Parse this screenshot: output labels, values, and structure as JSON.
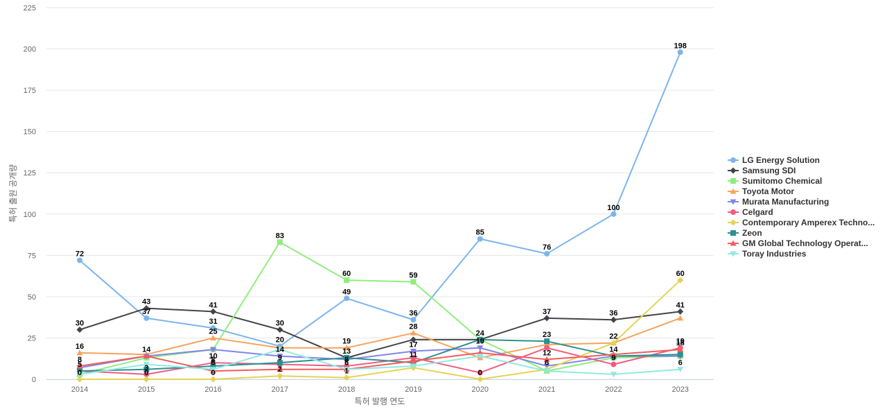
{
  "chart_data": {
    "type": "line",
    "title": "",
    "xlabel": "특허 발행 연도",
    "ylabel": "특허 출원 공개량",
    "x": [
      "2014",
      "2015",
      "2016",
      "2017",
      "2018",
      "2019",
      "2020",
      "2021",
      "2022",
      "2023"
    ],
    "ylim": [
      0,
      225
    ],
    "yticks": [
      0,
      25,
      50,
      75,
      100,
      125,
      150,
      175,
      200,
      225
    ],
    "grid": "horizontal",
    "legend_position": "right",
    "series": [
      {
        "name": "LG Energy Solution",
        "color": "#7cb5ec",
        "marker": "circle",
        "values": [
          72,
          37,
          31,
          20,
          49,
          36,
          85,
          76,
          100,
          198
        ]
      },
      {
        "name": "Samsung SDI",
        "color": "#434348",
        "marker": "diamond",
        "values": [
          30,
          43,
          41,
          30,
          13,
          24,
          24,
          37,
          36,
          41
        ]
      },
      {
        "name": "Sumitomo Chemical",
        "color": "#90ed7d",
        "marker": "square",
        "values": [
          3,
          13,
          18,
          83,
          60,
          59,
          24,
          5,
          13,
          14
        ]
      },
      {
        "name": "Toyota Motor",
        "color": "#f7a35c",
        "marker": "triangle",
        "values": [
          16,
          15,
          25,
          19,
          19,
          28,
          13,
          21,
          22,
          37
        ]
      },
      {
        "name": "Murata Manufacturing",
        "color": "#8085e9",
        "marker": "triangle-down",
        "values": [
          7,
          14,
          18,
          14,
          12,
          17,
          19,
          8,
          14,
          14
        ]
      },
      {
        "name": "Celgard",
        "color": "#f15c80",
        "marker": "circle",
        "values": [
          5,
          3,
          10,
          9,
          8,
          13,
          4,
          19,
          9,
          19
        ]
      },
      {
        "name": "Contemporary Amperex Techno...",
        "color": "#e4d354",
        "marker": "diamond",
        "values": [
          0,
          0,
          0,
          2,
          1,
          7,
          0,
          6,
          22,
          60
        ]
      },
      {
        "name": "Zeon",
        "color": "#2b908f",
        "marker": "square",
        "values": [
          5,
          6,
          8,
          10,
          13,
          10,
          24,
          23,
          14,
          15
        ]
      },
      {
        "name": "GM Global Technology Operat...",
        "color": "#f45b5b",
        "marker": "triangle",
        "values": [
          8,
          14,
          5,
          6,
          6,
          11,
          16,
          12,
          15,
          18
        ]
      },
      {
        "name": "Toray Industries",
        "color": "#91e8e1",
        "marker": "triangle-down",
        "values": [
          3,
          9,
          6,
          18,
          6,
          8,
          14,
          5,
          3,
          6
        ]
      }
    ],
    "data_labels": [
      {
        "series": 0,
        "points": [
          0,
          1,
          2,
          3,
          4,
          5,
          6,
          7,
          8,
          9
        ]
      },
      {
        "series": 1,
        "points": [
          0,
          1,
          2,
          3,
          6,
          7,
          8,
          9
        ]
      },
      {
        "series": 2,
        "points": [
          3,
          4,
          5
        ]
      },
      {
        "series": 3,
        "points": [
          0,
          2,
          4,
          5
        ]
      },
      {
        "series": 4,
        "points": [
          3,
          5,
          6
        ]
      },
      {
        "series": 5,
        "points": [
          1,
          2,
          3,
          4,
          8,
          9
        ]
      },
      {
        "series": 6,
        "points": [
          0,
          1,
          2,
          3,
          4,
          6,
          7,
          8,
          9
        ]
      },
      {
        "series": 7,
        "points": [
          0,
          2,
          4,
          7,
          8
        ]
      },
      {
        "series": 8,
        "points": [
          0,
          1,
          4,
          5,
          7,
          9
        ]
      },
      {
        "series": 9,
        "points": [
          2,
          9
        ]
      }
    ]
  }
}
